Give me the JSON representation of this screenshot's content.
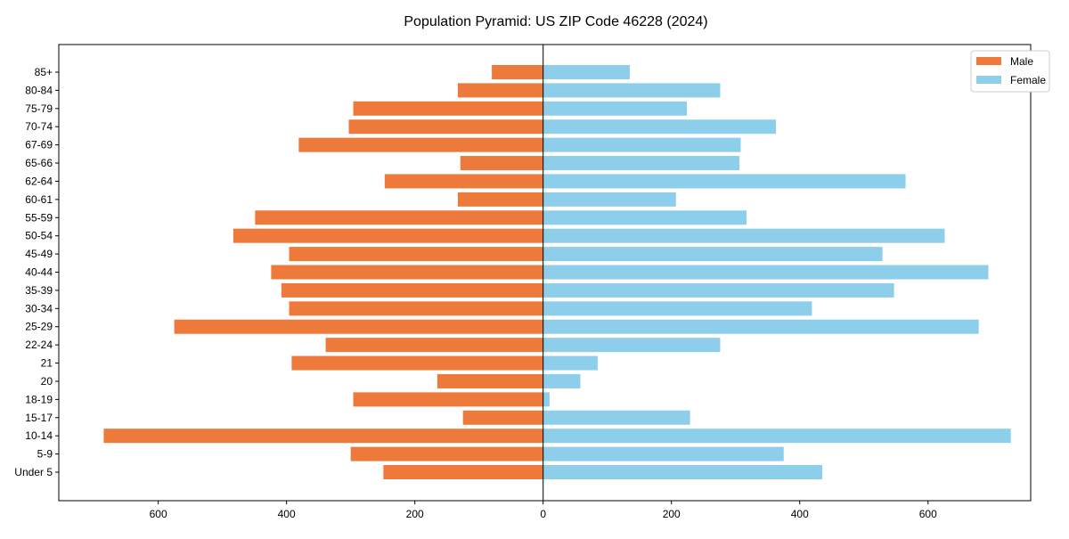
{
  "chart_data": {
    "type": "bar",
    "orientation": "horizontal-pyramid",
    "title": "Population Pyramid: US ZIP Code 46228 (2024)",
    "categories": [
      "Under 5",
      "5-9",
      "10-14",
      "15-17",
      "18-19",
      "20",
      "21",
      "22-24",
      "25-29",
      "30-34",
      "35-39",
      "40-44",
      "45-49",
      "50-54",
      "55-59",
      "60-61",
      "62-64",
      "65-66",
      "67-69",
      "70-74",
      "75-79",
      "80-84",
      "85+"
    ],
    "series": [
      {
        "name": "Male",
        "color": "#ed7a3a",
        "values": [
          249,
          300,
          685,
          125,
          296,
          165,
          392,
          339,
          575,
          396,
          408,
          424,
          396,
          483,
          449,
          133,
          247,
          129,
          381,
          303,
          296,
          133,
          80
        ]
      },
      {
        "name": "Female",
        "color": "#8dcfea",
        "values": [
          435,
          375,
          729,
          229,
          10,
          58,
          85,
          276,
          679,
          419,
          547,
          694,
          529,
          626,
          317,
          207,
          565,
          306,
          308,
          363,
          224,
          276,
          135
        ]
      }
    ],
    "xlim": [
      -755,
      760
    ],
    "xticks": [
      -600,
      -400,
      -200,
      0,
      200,
      400,
      600
    ],
    "xtick_labels": [
      "600",
      "400",
      "200",
      "0",
      "200",
      "400",
      "600"
    ],
    "legend": "top-right"
  }
}
